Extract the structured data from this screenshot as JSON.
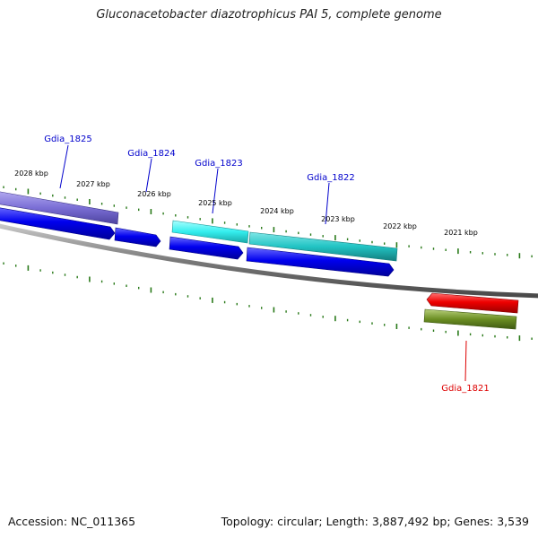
{
  "title": "Gluconacetobacter diazotrophicus PAI 5, complete genome",
  "footer": {
    "accession": "Accession: NC_011365",
    "topology": "Topology: circular; Length: 3,887,492 bp; Genes: 3,539"
  },
  "colors": {
    "backbone": "#808080",
    "tick": "#2a7a1a",
    "gene_label_forward": "#0000cc",
    "gene_label_reverse": "#dd0000",
    "cds_forward": "#0000ee",
    "cds_reverse": "#ee0000",
    "cog_purple": "#7b6fd6",
    "cog_cyan": "#33eeee",
    "cog_teal": "#22c4c4",
    "cog_olive": "#6b8e23"
  },
  "scale": {
    "labels": [
      "2028 kbp",
      "2027 kbp",
      "2026 kbp",
      "2025 kbp",
      "2024 kbp",
      "2023 kbp",
      "2022 kbp",
      "2021 kbp"
    ]
  },
  "genes": [
    {
      "label": "Gdia_1825",
      "strand": "forward"
    },
    {
      "label": "Gdia_1824",
      "strand": "forward"
    },
    {
      "label": "Gdia_1823",
      "strand": "forward"
    },
    {
      "label": "Gdia_1822",
      "strand": "forward"
    },
    {
      "label": "Gdia_1821",
      "strand": "reverse"
    }
  ]
}
